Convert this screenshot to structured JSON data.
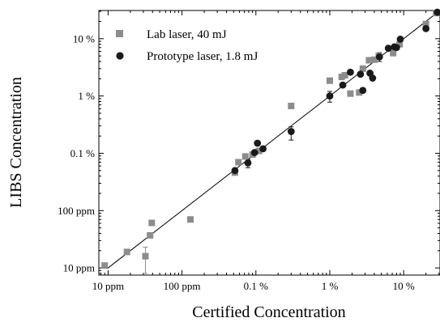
{
  "chart_data": {
    "type": "scatter",
    "xlabel": "Certified Concentration",
    "ylabel": "LIBS Concentration",
    "xscale": "log",
    "yscale": "log",
    "xlim": [
      7.5,
      310000
    ],
    "ylim": [
      7.5,
      310000
    ],
    "x_ticks": [
      {
        "value": 10,
        "label": "10 ppm"
      },
      {
        "value": 100,
        "label": "100 ppm"
      },
      {
        "value": 1000,
        "label": "0.1 %"
      },
      {
        "value": 10000,
        "label": "1 %"
      },
      {
        "value": 100000,
        "label": "10 %"
      }
    ],
    "y_ticks": [
      {
        "value": 10,
        "label": "10 ppm"
      },
      {
        "value": 100,
        "label": "100 ppm"
      },
      {
        "value": 1000,
        "label": "0.1 %"
      },
      {
        "value": 10000,
        "label": "1 %"
      },
      {
        "value": 100000,
        "label": "10 %"
      }
    ],
    "legend_position": "top-left",
    "grid": false,
    "reference_line": {
      "type": "y = x",
      "color": "#000000"
    },
    "series": [
      {
        "name": "Lab laser, 40 mJ",
        "marker": "square",
        "color": "#8c8c8c",
        "points": [
          {
            "x": 9,
            "y": 11
          },
          {
            "x": 18,
            "y": 19
          },
          {
            "x": 32,
            "y": 16,
            "err": [
              8,
              23
            ]
          },
          {
            "x": 37,
            "y": 37
          },
          {
            "x": 39,
            "y": 61
          },
          {
            "x": 130,
            "y": 70,
            "err": [
              63,
              78
            ]
          },
          {
            "x": 520,
            "y": 460
          },
          {
            "x": 580,
            "y": 700
          },
          {
            "x": 720,
            "y": 880
          },
          {
            "x": 900,
            "y": 950
          },
          {
            "x": 1100,
            "y": 1100
          },
          {
            "x": 3000,
            "y": 6700
          },
          {
            "x": 10000,
            "y": 18500
          },
          {
            "x": 14500,
            "y": 21500
          },
          {
            "x": 16000,
            "y": 23000
          },
          {
            "x": 19000,
            "y": 11000
          },
          {
            "x": 25000,
            "y": 11500
          },
          {
            "x": 28000,
            "y": 30000
          },
          {
            "x": 34000,
            "y": 42000
          },
          {
            "x": 40000,
            "y": 43000
          },
          {
            "x": 46000,
            "y": 50000
          },
          {
            "x": 72000,
            "y": 56000
          },
          {
            "x": 88000,
            "y": 80000
          },
          {
            "x": 200000,
            "y": 180000
          },
          {
            "x": 275000,
            "y": 280000
          }
        ]
      },
      {
        "name": "Prototype laser, 1.8 mJ",
        "marker": "circle",
        "color": "#1a1a1a",
        "points": [
          {
            "x": 520,
            "y": 500
          },
          {
            "x": 780,
            "y": 680,
            "err": [
              560,
              780
            ]
          },
          {
            "x": 960,
            "y": 1030
          },
          {
            "x": 1050,
            "y": 1500
          },
          {
            "x": 1250,
            "y": 1200
          },
          {
            "x": 3000,
            "y": 2400,
            "err": [
              1700,
              2900
            ]
          },
          {
            "x": 10000,
            "y": 10000,
            "err": [
              7800,
              12000
            ]
          },
          {
            "x": 15000,
            "y": 15500
          },
          {
            "x": 19000,
            "y": 26000
          },
          {
            "x": 26000,
            "y": 24000
          },
          {
            "x": 28000,
            "y": 12500
          },
          {
            "x": 35000,
            "y": 25000
          },
          {
            "x": 38000,
            "y": 20500
          },
          {
            "x": 47000,
            "y": 48000,
            "err": [
              40000,
              57000
            ]
          },
          {
            "x": 62000,
            "y": 68000
          },
          {
            "x": 75000,
            "y": 72000
          },
          {
            "x": 80000,
            "y": 70000
          },
          {
            "x": 90000,
            "y": 98000
          },
          {
            "x": 200000,
            "y": 150000
          },
          {
            "x": 285000,
            "y": 290000
          }
        ]
      }
    ]
  }
}
